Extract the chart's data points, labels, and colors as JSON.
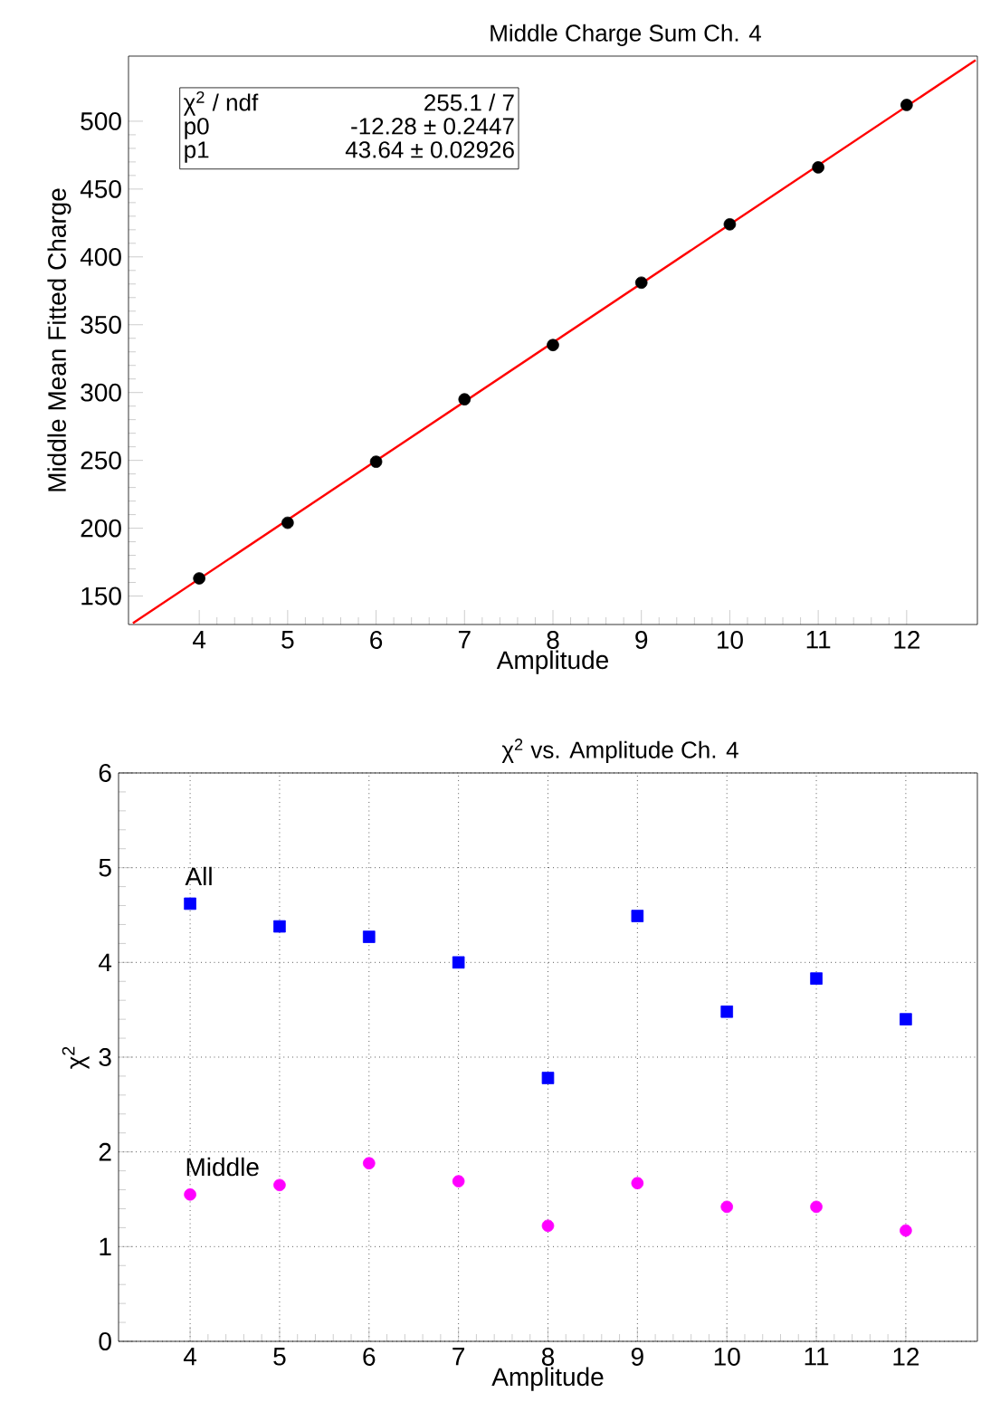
{
  "chart_data": [
    {
      "type": "scatter",
      "title": "Middle Charge Sum Ch. 4",
      "xlabel": "Amplitude",
      "ylabel": "Middle Mean Fitted Charge",
      "x": [
        4,
        5,
        6,
        7,
        8,
        9,
        10,
        11,
        12
      ],
      "series": [
        {
          "color": "#000000",
          "marker": "circle",
          "values": [
            163,
            204,
            249,
            295,
            335,
            381,
            424,
            466,
            512
          ]
        },
        {
          "type": "line",
          "color": "#ff0000",
          "x": [
            3.25,
            12.78
          ],
          "values": [
            130,
            545
          ]
        }
      ],
      "xlim": [
        3.2,
        12.8
      ],
      "ylim": [
        129,
        548
      ],
      "xticks": [
        4,
        5,
        6,
        7,
        8,
        9,
        10,
        11,
        12
      ],
      "yticks": [
        150,
        200,
        250,
        300,
        350,
        400,
        450,
        500
      ],
      "annotations": [
        "χ$^{2}$ / ndf",
        "255.1 / 7",
        "p0",
        "-12.28 ± 0.2447",
        "p1",
        "43.64 ± 0.02926"
      ]
    },
    {
      "type": "scatter",
      "title": "χ$^{2}$ vs. Amplitude Ch. 4",
      "xlabel": "Amplitude",
      "ylabel": "χ$^{2}$",
      "x": [
        4,
        5,
        6,
        7,
        8,
        9,
        10,
        11,
        12
      ],
      "grid": true,
      "series": [
        {
          "name": "All",
          "color": "#0000ff",
          "marker": "square",
          "values": [
            4.62,
            4.38,
            4.27,
            4.0,
            2.78,
            4.49,
            3.48,
            3.83,
            3.4
          ]
        },
        {
          "name": "Middle",
          "color": "#ff00ff",
          "marker": "circle",
          "values": [
            1.55,
            1.65,
            1.88,
            1.69,
            1.22,
            1.67,
            1.42,
            1.42,
            1.17
          ]
        }
      ],
      "xlim": [
        3.2,
        12.8
      ],
      "ylim": [
        0,
        6
      ],
      "xticks": [
        4,
        5,
        6,
        7,
        8,
        9,
        10,
        11,
        12
      ],
      "yticks": [
        0,
        1,
        2,
        3,
        4,
        5,
        6
      ]
    }
  ]
}
